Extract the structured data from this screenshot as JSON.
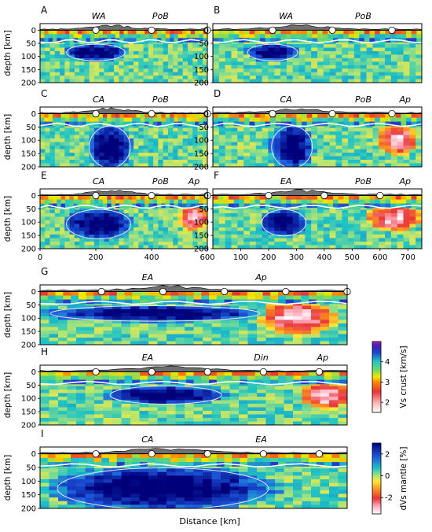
{
  "chart_data": [
    {
      "type": "heatmap",
      "panel": "A",
      "labels": [
        "WA",
        "PoB"
      ],
      "x_ticks": [],
      "ylabel": "depth [km]",
      "y_ticks": [
        "0",
        "50",
        "100",
        "150",
        "200"
      ],
      "ylim": [
        200,
        -25
      ],
      "distance_km": [
        0,
        600
      ],
      "markers_km": [
        200,
        400,
        600
      ],
      "high_velocity_bodies": [
        {
          "x": [
            100,
            300
          ],
          "depth": [
            55,
            115
          ]
        }
      ]
    },
    {
      "type": "heatmap",
      "panel": "B",
      "labels": [
        "WA",
        "PoB"
      ],
      "x_ticks": [],
      "y_ticks": [
        "0",
        "50",
        "100",
        "150",
        "200"
      ],
      "ylim": [
        200,
        -25
      ],
      "distance_km": [
        0,
        700
      ],
      "markers_km": [
        200,
        400,
        600
      ],
      "high_velocity_bodies": [
        {
          "x": [
            120,
            280
          ],
          "depth": [
            55,
            115
          ]
        }
      ]
    },
    {
      "type": "heatmap",
      "panel": "C",
      "labels": [
        "CA",
        "PoB"
      ],
      "x_ticks": [],
      "ylabel": "depth [km]",
      "y_ticks": [
        "0",
        "50",
        "100",
        "150",
        "200"
      ],
      "ylim": [
        200,
        -25
      ],
      "distance_km": [
        0,
        600
      ],
      "markers_km": [
        200,
        400,
        600
      ],
      "high_velocity_bodies": [
        {
          "x": [
            180,
            320
          ],
          "depth": [
            50,
            200
          ]
        }
      ]
    },
    {
      "type": "heatmap",
      "panel": "D",
      "labels": [
        "CA",
        "PoB",
        "Ap"
      ],
      "x_ticks": [],
      "y_ticks": [
        "0",
        "50",
        "100",
        "150",
        "200"
      ],
      "ylim": [
        200,
        -25
      ],
      "distance_km": [
        0,
        700
      ],
      "markers_km": [
        200,
        400,
        600
      ],
      "high_velocity_bodies": [
        {
          "x": [
            200,
            330
          ],
          "depth": [
            50,
            200
          ]
        }
      ],
      "low_velocity_bodies": [
        {
          "x": [
            560,
            680
          ],
          "depth": [
            40,
            150
          ]
        }
      ]
    },
    {
      "type": "heatmap",
      "panel": "E",
      "labels": [
        "CA",
        "PoB",
        "Ap"
      ],
      "xlim": [
        0,
        600
      ],
      "x_ticks": [
        "0",
        "200",
        "400",
        "600"
      ],
      "ylabel": "depth [km]",
      "y_ticks": [
        "0",
        "50",
        "100",
        "150",
        "200"
      ],
      "ylim": [
        200,
        -25
      ],
      "distance_km": [
        0,
        600
      ],
      "markers_km": [
        200,
        400,
        600
      ],
      "high_velocity_bodies": [
        {
          "x": [
            100,
            320
          ],
          "depth": [
            55,
            160
          ]
        }
      ],
      "low_velocity_bodies": [
        {
          "x": [
            500,
            600
          ],
          "depth": [
            40,
            130
          ]
        }
      ]
    },
    {
      "type": "heatmap",
      "panel": "F",
      "labels": [
        "EA",
        "PoB",
        "Ap"
      ],
      "xlim": [
        0,
        750
      ],
      "x_ticks": [
        "100",
        "200",
        "300",
        "400",
        "500",
        "600",
        "700"
      ],
      "y_ticks": [
        "0",
        "50",
        "100",
        "150",
        "200"
      ],
      "ylim": [
        200,
        -25
      ],
      "distance_km": [
        0,
        750
      ],
      "markers_km": [
        200,
        400,
        600
      ],
      "high_velocity_bodies": [
        {
          "x": [
            180,
            330
          ],
          "depth": [
            55,
            150
          ]
        }
      ],
      "low_velocity_bodies": [
        {
          "x": [
            560,
            740
          ],
          "depth": [
            40,
            130
          ]
        }
      ]
    },
    {
      "type": "heatmap",
      "panel": "G",
      "labels": [
        "EA",
        "Ap"
      ],
      "x_ticks": [],
      "ylabel": "depth [km]",
      "y_ticks": [
        "0",
        "50",
        "100",
        "150",
        "200"
      ],
      "ylim": [
        200,
        -25
      ],
      "distance_km": [
        0,
        1000
      ],
      "markers_km": [
        200,
        400,
        600,
        800,
        1000
      ],
      "high_velocity_bodies": [
        {
          "x": [
            50,
            700
          ],
          "depth": [
            55,
            110
          ]
        }
      ],
      "low_velocity_bodies": [
        {
          "x": [
            720,
            950
          ],
          "depth": [
            40,
            160
          ]
        }
      ]
    },
    {
      "type": "heatmap",
      "panel": "H",
      "labels": [
        "EA",
        "Din",
        "Ap"
      ],
      "x_ticks": [],
      "ylabel": "depth [km]",
      "y_ticks": [
        "0",
        "50",
        "100",
        "150",
        "200"
      ],
      "ylim": [
        200,
        -25
      ],
      "distance_km": [
        0,
        1100
      ],
      "markers_km": [
        200,
        400,
        600,
        800,
        1000
      ],
      "high_velocity_bodies": [
        {
          "x": [
            260,
            640
          ],
          "depth": [
            55,
            120
          ]
        }
      ],
      "low_velocity_bodies": [
        {
          "x": [
            950,
            1100
          ],
          "depth": [
            40,
            140
          ]
        }
      ]
    },
    {
      "type": "heatmap",
      "panel": "I",
      "labels": [
        "CA",
        "EA"
      ],
      "xlabel": "Distance [km]",
      "x_ticks": [],
      "ylabel": "depth [km]",
      "y_ticks": [
        "0",
        "50",
        "100",
        "150",
        "200"
      ],
      "ylim": [
        200,
        -25
      ],
      "distance_km": [
        0,
        1100
      ],
      "markers_km": [
        200,
        400,
        600,
        800,
        1000
      ],
      "high_velocity_bodies": [
        {
          "x": [
            80,
            800
          ],
          "depth": [
            55,
            200
          ]
        }
      ]
    }
  ],
  "colorbars": [
    {
      "label": "Vs crust [km/s]",
      "range": [
        1.5,
        5.0
      ],
      "ticks": [
        "2",
        "3",
        "4"
      ]
    },
    {
      "label": "dVs mantle [%]",
      "range": [
        -3.5,
        3.0
      ],
      "ticks": [
        "-2",
        "0",
        "2"
      ]
    }
  ],
  "xlabel": "Distance [km]",
  "colors": {
    "mantle_fast": "#00007a",
    "mantle_slow": "#e8343a",
    "crust_high": "#1e3fd0",
    "crust_low": "#ff8a00",
    "topography": "#6f6f6f"
  }
}
